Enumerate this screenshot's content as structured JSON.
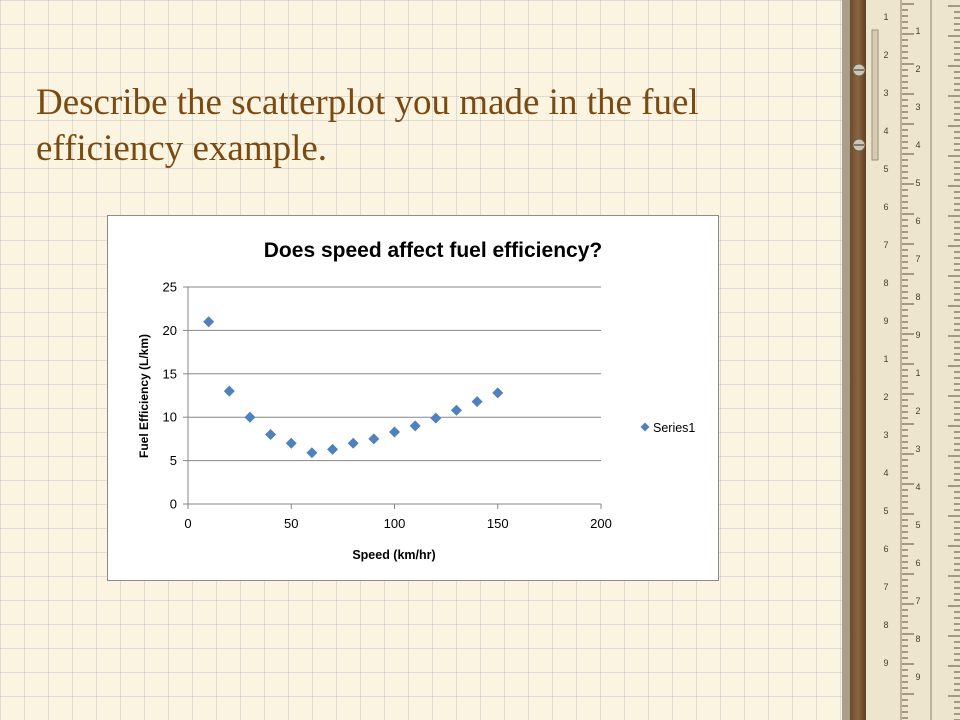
{
  "slide": {
    "title": "Describe the scatterplot you made in the fuel efficiency example."
  },
  "colors": {
    "title": "#7a4a12",
    "marker": "#4f81bd",
    "background": "#fbf4e0"
  },
  "decoration": {
    "ruler_numbers": [
      "1",
      "2",
      "3",
      "4",
      "5",
      "6",
      "7",
      "8",
      "9",
      "1",
      "2",
      "3",
      "4",
      "5",
      "6",
      "7",
      "8",
      "9"
    ]
  },
  "chart_data": {
    "type": "scatter",
    "title": "Does speed affect fuel efficiency?",
    "xlabel": "Speed (km/hr)",
    "ylabel": "Fuel Efficiency (L/km)",
    "xlim": [
      0,
      200
    ],
    "ylim": [
      0,
      25
    ],
    "xticks": [
      0,
      50,
      100,
      150,
      200
    ],
    "yticks": [
      0,
      5,
      10,
      15,
      20,
      25
    ],
    "grid": "horizontal",
    "legend_position": "right",
    "series": [
      {
        "name": "Series1",
        "marker": "diamond",
        "x": [
          10,
          20,
          30,
          40,
          50,
          60,
          70,
          80,
          90,
          100,
          110,
          120,
          130,
          140,
          150
        ],
        "y": [
          21,
          13,
          10,
          8,
          7,
          5.9,
          6.3,
          7,
          7.5,
          8.3,
          9,
          9.9,
          10.8,
          11.8,
          12.8
        ]
      }
    ]
  }
}
